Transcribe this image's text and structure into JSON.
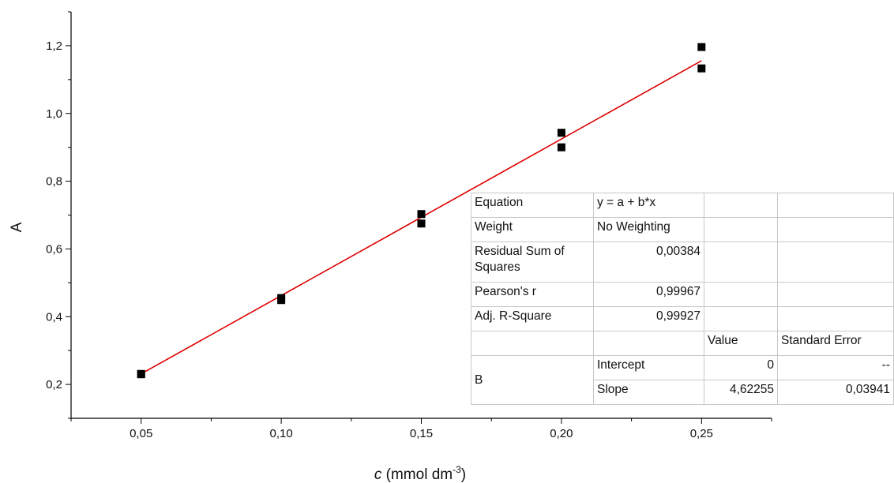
{
  "chart_data": {
    "type": "scatter",
    "xlabel_italic": "c",
    "xlabel_rest": " (mmol dm",
    "xlabel_sup": "-3",
    "xlabel_close": ")",
    "ylabel": "A",
    "xlim": [
      0.025,
      0.275
    ],
    "ylim": [
      0.1,
      1.3
    ],
    "x_ticks": [
      0.05,
      0.1,
      0.15,
      0.2,
      0.25
    ],
    "x_tick_labels": [
      "0,05",
      "0,10",
      "0,15",
      "0,20",
      "0,25"
    ],
    "y_ticks": [
      0.2,
      0.4,
      0.6,
      0.8,
      1.0,
      1.2
    ],
    "y_tick_labels": [
      "0,2",
      "0,4",
      "0,6",
      "0,8",
      "1,0",
      "1,2"
    ],
    "grid": false,
    "series": [
      {
        "marker": "square",
        "color": "#000000",
        "points": [
          {
            "x": 0.05,
            "y": 0.23
          },
          {
            "x": 0.05,
            "y": 0.231
          },
          {
            "x": 0.1,
            "y": 0.449
          },
          {
            "x": 0.1,
            "y": 0.455
          },
          {
            "x": 0.15,
            "y": 0.675
          },
          {
            "x": 0.15,
            "y": 0.703
          },
          {
            "x": 0.2,
            "y": 0.9
          },
          {
            "x": 0.2,
            "y": 0.943
          },
          {
            "x": 0.25,
            "y": 1.133
          },
          {
            "x": 0.25,
            "y": 1.196
          }
        ]
      }
    ],
    "fit_line": {
      "color": "#e00000",
      "intercept": 0,
      "slope": 4.62255,
      "x_range": [
        0.05,
        0.25
      ]
    }
  },
  "stats_table": {
    "equation_label": "Equation",
    "equation_value": "y = a + b*x",
    "weight_label": "Weight",
    "weight_value": "No Weighting",
    "rss_label": "Residual Sum of Squares",
    "rss_value": "0,00384",
    "pearson_label": "Pearson's r",
    "pearson_value": "0,99967",
    "adjr2_label": "Adj. R-Square",
    "adjr2_value": "0,99927",
    "value_header": "Value",
    "stderr_header": "Standard Error",
    "param_group": "B",
    "intercept_label": "Intercept",
    "intercept_value": "0",
    "intercept_error": "--",
    "slope_label": "Slope",
    "slope_value": "4,62255",
    "slope_error": "0,03941"
  }
}
